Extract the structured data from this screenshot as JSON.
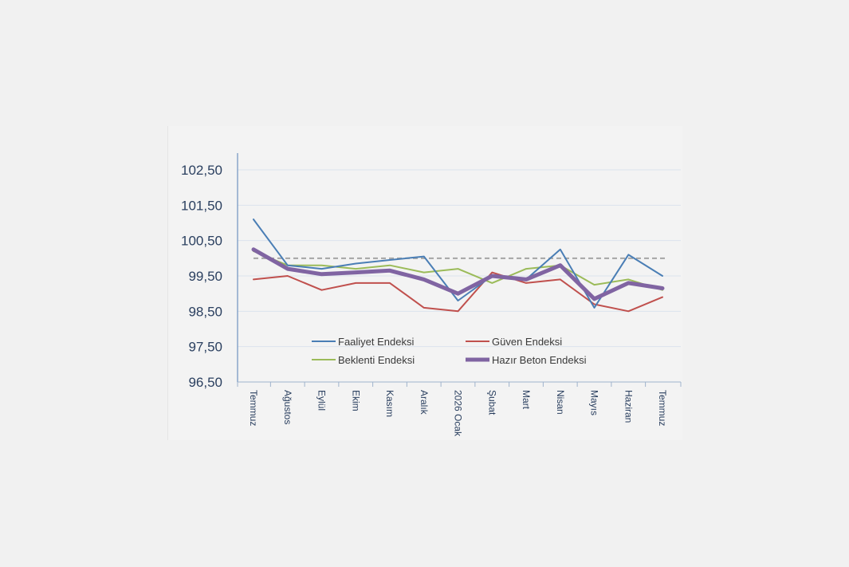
{
  "chart_data": {
    "type": "line",
    "categories": [
      "Temmuz",
      "Ağustos",
      "Eylül",
      "Ekim",
      "Kasım",
      "Aralık",
      "2026 Ocak",
      "Şubat",
      "Mart",
      "Nisan",
      "Mayıs",
      "Haziran",
      "Temmuz"
    ],
    "ylim": [
      96.5,
      102.5
    ],
    "yticks": [
      "96,50",
      "97,50",
      "98,50",
      "99,50",
      "100,50",
      "101,50",
      "102,50"
    ],
    "ytick_values": [
      96.5,
      97.5,
      98.5,
      99.5,
      100.5,
      101.5,
      102.5
    ],
    "reference_line": 100.0,
    "grid": "horizontal",
    "legend_position": "inside-bottom",
    "series": [
      {
        "name": "Faaliyet Endeksi",
        "color": "#4a7eb5",
        "values": [
          101.1,
          99.8,
          99.7,
          99.85,
          99.95,
          100.05,
          98.8,
          99.5,
          99.4,
          100.25,
          98.6,
          100.1,
          99.5
        ]
      },
      {
        "name": "Güven Endeksi",
        "color": "#c0504d",
        "values": [
          99.4,
          99.5,
          99.1,
          99.3,
          99.3,
          98.6,
          98.5,
          99.6,
          99.3,
          99.4,
          98.7,
          98.5,
          98.9
        ]
      },
      {
        "name": "Beklenti Endeksi",
        "color": "#9bbb59",
        "values": [
          100.2,
          99.8,
          99.8,
          99.7,
          99.8,
          99.6,
          99.7,
          99.3,
          99.7,
          99.8,
          99.25,
          99.4,
          99.1
        ]
      },
      {
        "name": "Hazır Beton Endeksi",
        "color": "#8064a2",
        "values": [
          100.25,
          99.7,
          99.55,
          99.6,
          99.65,
          99.4,
          99.0,
          99.5,
          99.4,
          99.8,
          98.85,
          99.3,
          99.15
        ]
      }
    ]
  }
}
